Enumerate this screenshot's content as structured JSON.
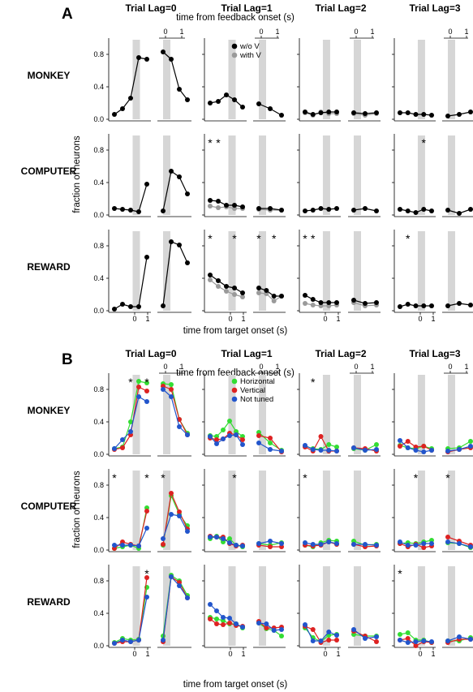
{
  "chart_data": {
    "type": "line",
    "panels": [
      "A",
      "B"
    ],
    "lag_titles": [
      "Trial Lag=0",
      "Trial Lag=1",
      "Trial Lag=2",
      "Trial Lag=3"
    ],
    "rows": [
      "MONKEY",
      "COMPUTER",
      "REWARD"
    ],
    "ylabel": "fraction of neurons",
    "xlabel_bottom": "time from target onset (s)",
    "xlabel_top": "time from feedback onset (s)",
    "yticks": [
      "0.0",
      "0.4",
      "0.8"
    ],
    "ylim": [
      0,
      1.0
    ],
    "xticks": [
      "0",
      "1"
    ],
    "gray_band": "event onset",
    "A": {
      "legend": [
        {
          "label": "w/o V",
          "color": "#000000"
        },
        {
          "label": "with V",
          "color": "#9a9a9a"
        }
      ],
      "data": {
        "MONKEY": [
          {
            "t": [
              [
                0.06,
                0.13,
                0.26,
                0.76,
                0.74
              ],
              [
                0.83,
                0.74,
                0.37,
                0.24
              ]
            ],
            "v": null
          },
          {
            "t": [
              [
                0.2,
                0.22,
                0.3,
                0.24,
                0.15
              ],
              [
                0.19,
                0.13,
                0.05
              ]
            ],
            "v": null
          },
          {
            "t": [
              [
                0.09,
                0.06,
                0.08,
                0.09,
                0.09
              ],
              [
                0.08,
                0.07,
                0.08
              ]
            ],
            "v": [
              [
                0.08,
                0.05,
                0.09,
                0.07,
                0.07
              ],
              [
                0.07,
                0.05,
                0.07
              ]
            ]
          },
          {
            "t": [
              [
                0.08,
                0.08,
                0.06,
                0.06,
                0.05
              ],
              [
                0.04,
                0.06,
                0.09
              ]
            ],
            "v": null
          }
        ],
        "COMPUTER": [
          {
            "t": [
              [
                0.08,
                0.07,
                0.06,
                0.04,
                0.38
              ],
              [
                0.05,
                0.54,
                0.47,
                0.26
              ]
            ],
            "v": null
          },
          {
            "t": [
              [
                0.18,
                0.17,
                0.12,
                0.12,
                0.1
              ],
              [
                0.08,
                0.08,
                0.06
              ]
            ],
            "v": [
              [
                0.11,
                0.09,
                0.1,
                0.08,
                0.08
              ],
              [
                0.07,
                0.06,
                0.06
              ]
            ]
          },
          {
            "t": [
              [
                0.05,
                0.06,
                0.08,
                0.07,
                0.08
              ],
              [
                0.06,
                0.08,
                0.05
              ]
            ],
            "v": null
          },
          {
            "t": [
              [
                0.07,
                0.05,
                0.03,
                0.07,
                0.05
              ],
              [
                0.06,
                0.02,
                0.07
              ]
            ],
            "v": null
          }
        ],
        "REWARD": [
          {
            "t": [
              [
                0.02,
                0.08,
                0.05,
                0.05,
                0.66
              ],
              [
                0.06,
                0.85,
                0.81,
                0.59
              ]
            ],
            "v": null
          },
          {
            "t": [
              [
                0.44,
                0.37,
                0.3,
                0.28,
                0.22
              ],
              [
                0.28,
                0.25,
                0.18,
                0.18
              ]
            ],
            "v": [
              [
                0.38,
                0.3,
                0.24,
                0.2,
                0.17
              ],
              [
                0.22,
                0.21,
                0.12,
                0.18
              ]
            ]
          },
          {
            "t": [
              [
                0.19,
                0.14,
                0.1,
                0.1,
                0.1
              ],
              [
                0.13,
                0.09,
                0.1
              ]
            ],
            "v": [
              [
                0.09,
                0.07,
                0.06,
                0.06,
                0.07
              ],
              [
                0.1,
                0.06,
                0.07
              ]
            ]
          },
          {
            "t": [
              [
                0.05,
                0.08,
                0.06,
                0.06,
                0.06
              ],
              [
                0.06,
                0.09,
                0.07
              ]
            ],
            "v": null
          }
        ]
      },
      "stars": {
        "COMPUTER": [
          [],
          [
            [
              0,
              0
            ],
            [
              0,
              1
            ]
          ],
          [],
          [
            [
              0,
              3
            ]
          ]
        ],
        "REWARD": [
          [],
          [
            [
              0,
              0
            ],
            [
              0,
              3
            ],
            [
              1,
              0
            ],
            [
              1,
              2
            ]
          ],
          [
            [
              0,
              0
            ],
            [
              0,
              1
            ]
          ],
          [
            [
              0,
              1
            ]
          ]
        ]
      }
    },
    "B": {
      "legend": [
        {
          "label": "Horizontal",
          "color": "#33dd33"
        },
        {
          "label": "Vertical",
          "color": "#dd2222"
        },
        {
          "label": "Not tuned",
          "color": "#2255cc"
        }
      ],
      "data": {
        "MONKEY": [
          {
            "g": [
              [
                0.07,
                0.09,
                0.4,
                0.9,
                0.88
              ],
              [
                0.87,
                0.86,
                0.43,
                0.26
              ]
            ],
            "r": [
              [
                0.06,
                0.08,
                0.24,
                0.83,
                0.78
              ],
              [
                0.84,
                0.8,
                0.43,
                0.24
              ]
            ],
            "b": [
              [
                0.07,
                0.18,
                0.28,
                0.71,
                0.65
              ],
              [
                0.8,
                0.71,
                0.34,
                0.24
              ]
            ]
          },
          {
            "g": [
              [
                0.23,
                0.22,
                0.3,
                0.41,
                0.28,
                0.22
              ],
              [
                0.27,
                0.14,
                0.05
              ]
            ],
            "r": [
              [
                0.2,
                0.18,
                0.19,
                0.26,
                0.24,
                0.18
              ],
              [
                0.23,
                0.2,
                0.03
              ]
            ],
            "b": [
              [
                0.22,
                0.13,
                0.19,
                0.23,
                0.24,
                0.12
              ],
              [
                0.14,
                0.06,
                0.04
              ]
            ]
          },
          {
            "g": [
              [
                0.1,
                0.07,
                0.06,
                0.12,
                0.09
              ],
              [
                0.07,
                0.05,
                0.12
              ]
            ],
            "r": [
              [
                0.09,
                0.04,
                0.22,
                0.04,
                0.04
              ],
              [
                0.08,
                0.07,
                0.04
              ]
            ],
            "b": [
              [
                0.11,
                0.06,
                0.05,
                0.05,
                0.04
              ],
              [
                0.08,
                0.05,
                0.06
              ]
            ]
          },
          {
            "g": [
              [
                0.11,
                0.08,
                0.07,
                0.1,
                0.07
              ],
              [
                0.07,
                0.08,
                0.16
              ]
            ],
            "r": [
              [
                0.1,
                0.16,
                0.09,
                0.1,
                0.05
              ],
              [
                0.03,
                0.06,
                0.08
              ]
            ],
            "b": [
              [
                0.17,
                0.08,
                0.05,
                0.03,
                0.05
              ],
              [
                0.04,
                0.06,
                0.1
              ]
            ]
          }
        ],
        "COMPUTER": [
          {
            "g": [
              [
                0.02,
                0.04,
                0.06,
                0.02,
                0.52
              ],
              [
                0.06,
                0.67,
                0.44,
                0.3
              ]
            ],
            "r": [
              [
                0.02,
                0.1,
                0.07,
                0.05,
                0.48
              ],
              [
                0.07,
                0.7,
                0.47,
                0.26
              ]
            ],
            "b": [
              [
                0.06,
                0.06,
                0.06,
                0.05,
                0.27
              ],
              [
                0.14,
                0.44,
                0.42,
                0.23
              ]
            ]
          },
          {
            "g": [
              [
                0.14,
                0.17,
                0.1,
                0.14,
                0.06,
                0.04
              ],
              [
                0.08,
                0.06,
                0.09
              ]
            ],
            "r": [
              [
                0.17,
                0.16,
                0.16,
                0.08,
                0.05,
                0.06
              ],
              [
                0.06,
                0.04,
                0.04
              ]
            ],
            "b": [
              [
                0.16,
                0.16,
                0.14,
                0.09,
                0.06,
                0.05
              ],
              [
                0.08,
                0.11,
                0.08
              ]
            ]
          },
          {
            "g": [
              [
                0.06,
                0.04,
                0.09,
                0.12,
                0.11
              ],
              [
                0.11,
                0.06,
                0.07
              ]
            ],
            "r": [
              [
                0.06,
                0.05,
                0.06,
                0.1,
                0.07
              ],
              [
                0.07,
                0.04,
                0.05
              ]
            ],
            "b": [
              [
                0.09,
                0.07,
                0.07,
                0.1,
                0.08
              ],
              [
                0.07,
                0.07,
                0.06
              ]
            ]
          },
          {
            "g": [
              [
                0.08,
                0.09,
                0.08,
                0.1,
                0.12
              ],
              [
                0.09,
                0.08,
                0.03
              ]
            ],
            "r": [
              [
                0.08,
                0.04,
                0.07,
                0.03,
                0.05
              ],
              [
                0.16,
                0.11,
                0.06
              ]
            ],
            "b": [
              [
                0.1,
                0.06,
                0.06,
                0.08,
                0.08
              ],
              [
                0.1,
                0.08,
                0.04
              ]
            ]
          }
        ],
        "REWARD": [
          {
            "g": [
              [
                0.04,
                0.09,
                0.07,
                0.08,
                0.72
              ],
              [
                0.12,
                0.87,
                0.8,
                0.62
              ]
            ],
            "r": [
              [
                0.03,
                0.05,
                0.05,
                0.07,
                0.84
              ],
              [
                0.05,
                0.85,
                0.78,
                0.59
              ]
            ],
            "b": [
              [
                0.03,
                0.07,
                0.05,
                0.07,
                0.6
              ],
              [
                0.07,
                0.85,
                0.74,
                0.59
              ]
            ]
          },
          {
            "g": [
              [
                0.35,
                0.33,
                0.31,
                0.27,
                0.27,
                0.22
              ],
              [
                0.28,
                0.21,
                0.19,
                0.12
              ]
            ],
            "r": [
              [
                0.33,
                0.27,
                0.26,
                0.28,
                0.25,
                0.24
              ],
              [
                0.3,
                0.22,
                0.22,
                0.23
              ]
            ],
            "b": [
              [
                0.51,
                0.43,
                0.35,
                0.34,
                0.27,
                0.23
              ],
              [
                0.28,
                0.27,
                0.19,
                0.2
              ]
            ]
          },
          {
            "g": [
              [
                0.22,
                0.1,
                0.05,
                0.13,
                0.14
              ],
              [
                0.14,
                0.12,
                0.12
              ]
            ],
            "r": [
              [
                0.24,
                0.2,
                0.04,
                0.07,
                0.07
              ],
              [
                0.18,
                0.12,
                0.05
              ]
            ],
            "b": [
              [
                0.26,
                0.06,
                0.06,
                0.17,
                0.13
              ],
              [
                0.2,
                0.09,
                0.11
              ]
            ]
          },
          {
            "g": [
              [
                0.14,
                0.16,
                0.07,
                0.07,
                0.04
              ],
              [
                0.06,
                0.06,
                0.1
              ]
            ],
            "r": [
              [
                0.07,
                0.09,
                0.0,
                0.05,
                0.04
              ],
              [
                0.04,
                0.08,
                0.08
              ]
            ],
            "b": [
              [
                0.07,
                0.04,
                0.05,
                0.06,
                0.05
              ],
              [
                0.06,
                0.11,
                0.08
              ]
            ]
          }
        ]
      },
      "stars": {
        "MONKEY": [
          [
            [
              0,
              2
            ],
            [
              0,
              4
            ]
          ],
          [],
          [
            [
              0,
              1
            ]
          ],
          []
        ],
        "COMPUTER": [
          [
            [
              0,
              0
            ],
            [
              0,
              4
            ],
            [
              1,
              0
            ]
          ],
          [
            [
              0,
              3
            ]
          ],
          [
            [
              0,
              0
            ]
          ],
          [
            [
              0,
              2
            ],
            [
              1,
              0
            ]
          ]
        ],
        "REWARD": [
          [
            [
              0,
              4
            ]
          ],
          [],
          [],
          [
            [
              0,
              0
            ]
          ]
        ]
      }
    }
  }
}
